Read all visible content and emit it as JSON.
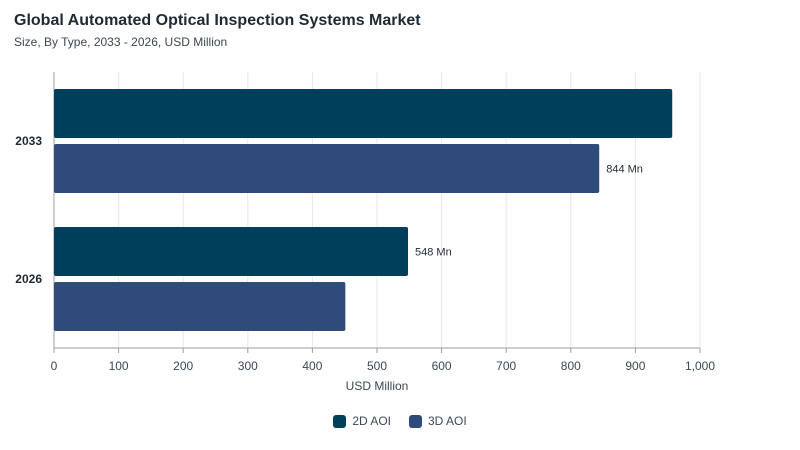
{
  "chart_data": {
    "type": "bar",
    "orientation": "horizontal",
    "title": "Global Automated Optical Inspection Systems Market",
    "subtitle": "Size, By Type, 2033 - 2026, USD Million",
    "categories": [
      "2033",
      "2026"
    ],
    "series": [
      {
        "name": "2D AOI",
        "color": "#003f5c",
        "values": [
          957,
          548
        ],
        "labels": [
          "",
          "548 Mn"
        ]
      },
      {
        "name": "3D AOI",
        "color": "#2f4b7c",
        "values": [
          844,
          451
        ],
        "labels": [
          "844 Mn",
          ""
        ]
      }
    ],
    "xlabel": "USD Million",
    "xlim": [
      0,
      1000
    ],
    "xticks": [
      "0",
      "100",
      "200",
      "300",
      "400",
      "500",
      "600",
      "700",
      "800",
      "900",
      "1,000"
    ],
    "grid": true,
    "legend_position": "bottom-center"
  }
}
